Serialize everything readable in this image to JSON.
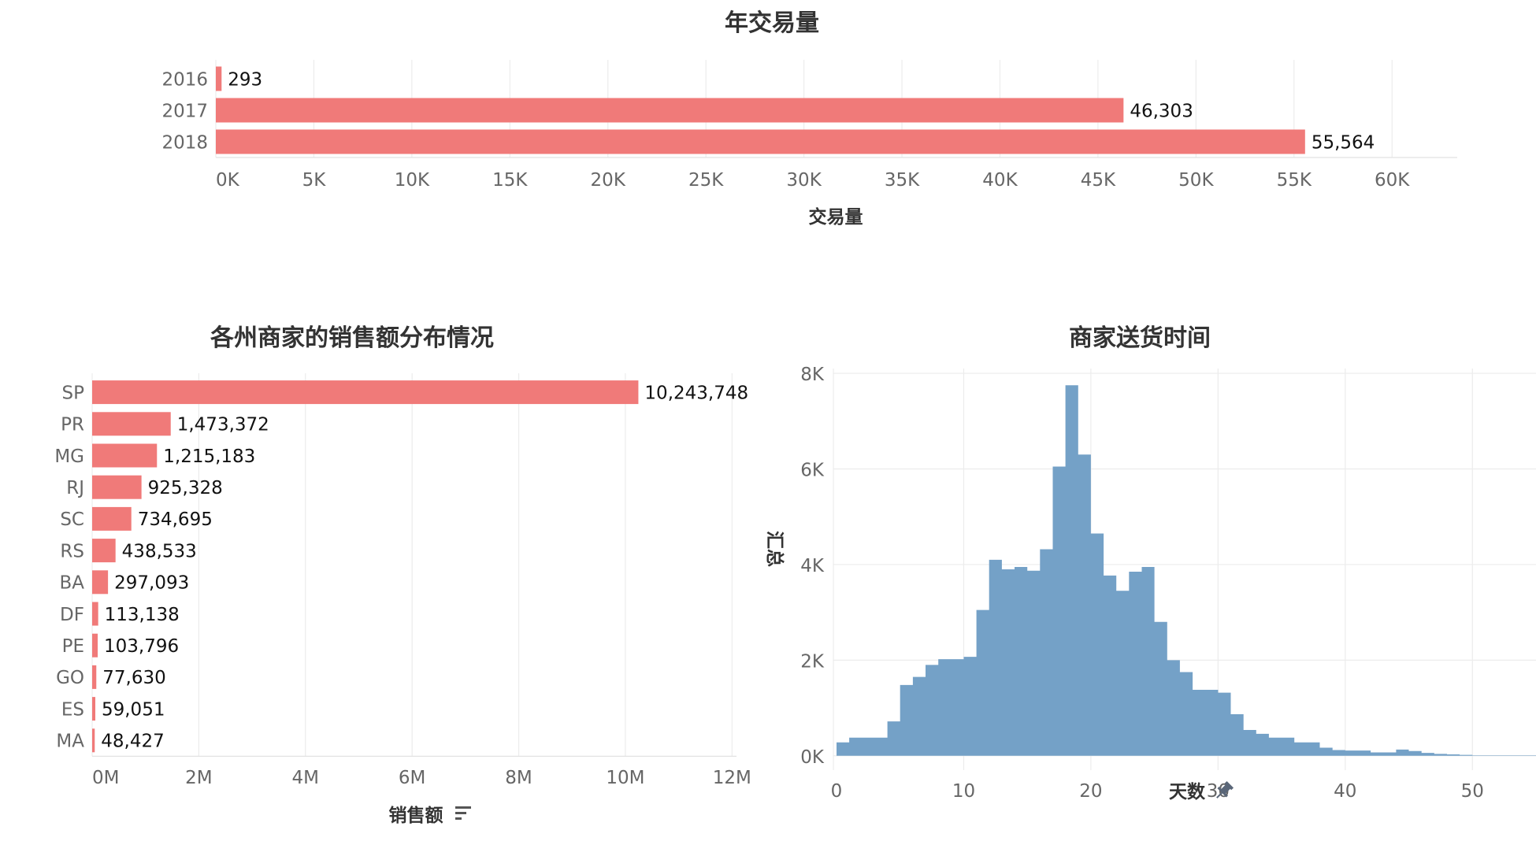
{
  "colors": {
    "bar": "#f07a79",
    "hist": "#74a1c7",
    "grid": "#ececec",
    "tick": "#666666",
    "title": "#333333"
  },
  "icons": {
    "sort": "sort-descending-icon",
    "pin": "pin-icon"
  },
  "chart_data": [
    {
      "type": "bar",
      "orientation": "horizontal",
      "title": "年交易量",
      "xlabel": "交易量",
      "categories": [
        "2016",
        "2017",
        "2018"
      ],
      "values": [
        293,
        46303,
        55564
      ],
      "value_labels": [
        "293",
        "46,303",
        "55,564"
      ],
      "xlim": [
        0,
        62000
      ],
      "xticks": [
        0,
        5000,
        10000,
        15000,
        20000,
        25000,
        30000,
        35000,
        40000,
        45000,
        50000,
        55000,
        60000
      ],
      "xtick_labels": [
        "0K",
        "5K",
        "10K",
        "15K",
        "20K",
        "25K",
        "30K",
        "35K",
        "40K",
        "45K",
        "50K",
        "55K",
        "60K"
      ],
      "grid": true
    },
    {
      "type": "bar",
      "orientation": "horizontal",
      "title": "各州商家的销售额分布情况",
      "xlabel": "销售额",
      "categories": [
        "SP",
        "PR",
        "MG",
        "RJ",
        "SC",
        "RS",
        "BA",
        "DF",
        "PE",
        "GO",
        "ES",
        "MA"
      ],
      "values": [
        10243748,
        1473372,
        1215183,
        925328,
        734695,
        438533,
        297093,
        113138,
        103796,
        77630,
        59051,
        48427
      ],
      "value_labels": [
        "10,243,748",
        "1,473,372",
        "1,215,183",
        "925,328",
        "734,695",
        "438,533",
        "297,093",
        "113,138",
        "103,796",
        "77,630",
        "59,051",
        "48,427"
      ],
      "xlim": [
        0,
        13000000
      ],
      "xticks": [
        0,
        2000000,
        4000000,
        6000000,
        8000000,
        10000000,
        12000000
      ],
      "xtick_labels": [
        "0M",
        "2M",
        "4M",
        "6M",
        "8M",
        "10M",
        "12M"
      ],
      "grid": true
    },
    {
      "type": "area",
      "subtype": "histogram",
      "title": "商家送货时间",
      "xlabel": "天数",
      "ylabel": "汇总",
      "x": [
        0,
        1,
        2,
        3,
        4,
        5,
        6,
        7,
        8,
        9,
        10,
        11,
        12,
        13,
        14,
        15,
        16,
        17,
        18,
        19,
        20,
        21,
        22,
        23,
        24,
        25,
        26,
        27,
        28,
        29,
        30,
        31,
        32,
        33,
        34,
        35,
        36,
        37,
        38,
        39,
        40,
        41,
        42,
        43,
        44,
        45,
        46,
        47,
        48,
        49,
        50,
        51,
        52,
        53,
        54,
        55
      ],
      "values": [
        280,
        380,
        380,
        380,
        720,
        1480,
        1650,
        1900,
        2020,
        2020,
        2070,
        3050,
        4100,
        3900,
        3950,
        3870,
        4320,
        6050,
        7750,
        6300,
        4650,
        3770,
        3450,
        3850,
        3950,
        2800,
        2000,
        1750,
        1380,
        1380,
        1320,
        870,
        540,
        460,
        380,
        380,
        280,
        280,
        170,
        120,
        110,
        110,
        70,
        70,
        130,
        100,
        60,
        40,
        30,
        20,
        10,
        10,
        10,
        10,
        10,
        10
      ],
      "xlim": [
        0,
        55
      ],
      "ylim": [
        -300,
        8100
      ],
      "xticks": [
        0,
        10,
        20,
        30,
        40,
        50
      ],
      "xtick_labels": [
        "0",
        "10",
        "20",
        "30",
        "40",
        "50"
      ],
      "yticks": [
        0,
        2000,
        4000,
        6000,
        8000
      ],
      "ytick_labels": [
        "0K",
        "2K",
        "4K",
        "6K",
        "8K"
      ],
      "grid": true
    }
  ]
}
